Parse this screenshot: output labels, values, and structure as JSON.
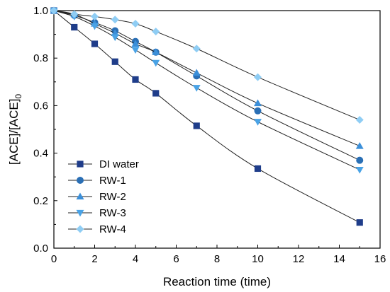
{
  "chart_data": {
    "type": "line",
    "xlabel": "Reaction time (time)",
    "ylabel_main": "[ACE]/[ACE]",
    "ylabel_sub": "0",
    "xlim": [
      0,
      16
    ],
    "ylim": [
      0.0,
      1.0
    ],
    "xticks": [
      "0",
      "2",
      "4",
      "6",
      "8",
      "10",
      "12",
      "14",
      "16"
    ],
    "yticks": [
      "0.0",
      "0.2",
      "0.4",
      "0.6",
      "0.8",
      "1.0"
    ],
    "grid": false,
    "legend_position": "bottom-left",
    "series": [
      {
        "name": "DI water",
        "marker": "square",
        "color": "#1f3d8a",
        "x": [
          0,
          1,
          2,
          3,
          4,
          5,
          7,
          10,
          15
        ],
        "y": [
          1.0,
          0.93,
          0.86,
          0.785,
          0.71,
          0.652,
          0.515,
          0.335,
          0.108
        ]
      },
      {
        "name": "RW-1",
        "marker": "circle",
        "color": "#2a6fb5",
        "x": [
          0,
          1,
          2,
          3,
          4,
          5,
          7,
          10,
          15
        ],
        "y": [
          1.0,
          0.98,
          0.95,
          0.915,
          0.87,
          0.825,
          0.725,
          0.578,
          0.37
        ]
      },
      {
        "name": "RW-2",
        "marker": "triangle-up",
        "color": "#3b8fd9",
        "x": [
          0,
          1,
          2,
          3,
          4,
          5,
          7,
          10,
          15
        ],
        "y": [
          1.0,
          0.985,
          0.945,
          0.905,
          0.86,
          0.825,
          0.738,
          0.61,
          0.43
        ]
      },
      {
        "name": "RW-3",
        "marker": "triangle-down",
        "color": "#4aa3e6",
        "x": [
          0,
          1,
          2,
          3,
          4,
          5,
          7,
          10,
          15
        ],
        "y": [
          1.0,
          0.975,
          0.935,
          0.888,
          0.835,
          0.78,
          0.675,
          0.532,
          0.33
        ]
      },
      {
        "name": "RW-4",
        "marker": "diamond",
        "color": "#8fcdf4",
        "x": [
          0,
          1,
          2,
          3,
          4,
          5,
          7,
          10,
          15
        ],
        "y": [
          1.0,
          0.985,
          0.975,
          0.962,
          0.945,
          0.912,
          0.84,
          0.72,
          0.54
        ]
      }
    ]
  }
}
